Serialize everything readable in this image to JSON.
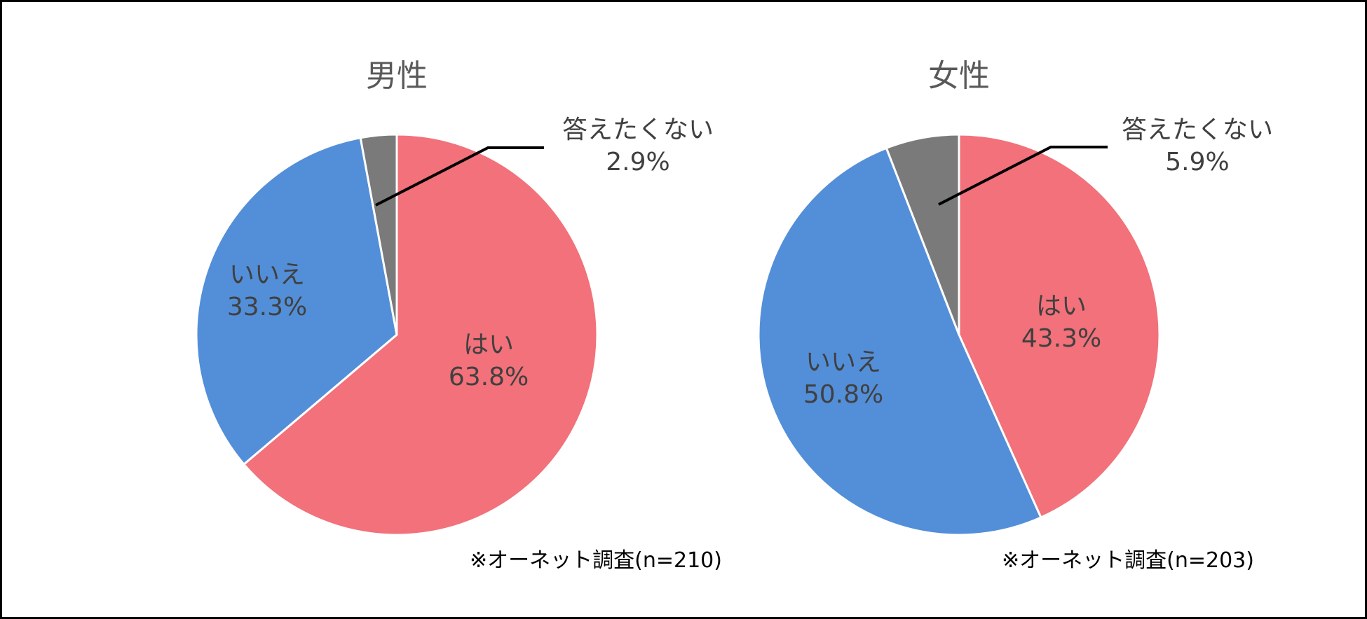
{
  "chart_data": [
    {
      "type": "pie",
      "title": "男性",
      "categories": [
        "はい",
        "いいえ",
        "答えたくない"
      ],
      "values": [
        63.8,
        33.3,
        2.9
      ],
      "colors": [
        "#F2717A",
        "#538FD9",
        "#7A7A7A"
      ],
      "labels": [
        "はい\n63.8%",
        "いいえ\n33.3%",
        "答えたくない\n2.9%"
      ],
      "start_angle": "12 o'clock, clockwise",
      "note": "※オーネット調査(n=210)",
      "legend": "none (data labels on slices)"
    },
    {
      "type": "pie",
      "title": "女性",
      "categories": [
        "はい",
        "いいえ",
        "答えたくない"
      ],
      "values": [
        43.3,
        50.8,
        5.9
      ],
      "colors": [
        "#F2717A",
        "#538FD9",
        "#7A7A7A"
      ],
      "labels": [
        "はい\n43.3%",
        "いいえ\n50.8%",
        "答えたくない\n5.9%"
      ],
      "start_angle": "12 o'clock, clockwise",
      "note": "※オーネット調査(n=203)",
      "legend": "none (data labels on slices)"
    }
  ],
  "charts": [
    {
      "title": "男性",
      "slices": [
        {
          "name": "はい",
          "pct": "63.8%"
        },
        {
          "name": "いいえ",
          "pct": "33.3%"
        },
        {
          "name": "答えたくない",
          "pct": "2.9%"
        }
      ],
      "note": "※オーネット調査(n=210)"
    },
    {
      "title": "女性",
      "slices": [
        {
          "name": "はい",
          "pct": "43.3%"
        },
        {
          "name": "いいえ",
          "pct": "50.8%"
        },
        {
          "name": "答えたくない",
          "pct": "5.9%"
        }
      ],
      "note": "※オーネット調査(n=203)"
    }
  ]
}
